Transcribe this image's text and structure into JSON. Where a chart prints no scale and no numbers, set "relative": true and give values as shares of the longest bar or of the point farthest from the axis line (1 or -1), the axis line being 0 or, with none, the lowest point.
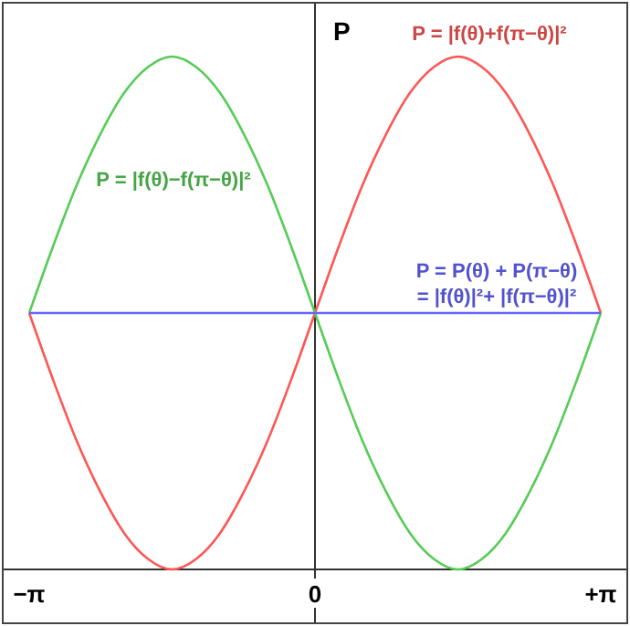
{
  "chart_data": {
    "type": "line",
    "relative": true,
    "ylabel": "P",
    "xlim": [
      -3.1416,
      3.1416
    ],
    "xticks": [
      {
        "value": -3.1416,
        "label": "−π"
      },
      {
        "value": 0,
        "label": "0"
      },
      {
        "value": 3.1416,
        "label": "+π"
      }
    ],
    "marker": "none",
    "line_style": "solid",
    "x": [
      -3.1416,
      -2.8798,
      -2.618,
      -2.3562,
      -2.0944,
      -1.8326,
      -1.5708,
      -1.309,
      -1.0472,
      -0.7854,
      -0.5236,
      -0.2618,
      0,
      0.2618,
      0.5236,
      0.7854,
      1.0472,
      1.309,
      1.5708,
      1.8326,
      2.0944,
      2.3562,
      2.618,
      2.8798,
      3.1416
    ],
    "series": [
      {
        "name": "P = |f(θ)+f(π−θ)|²",
        "color": "#ff5555",
        "values": [
          0.5,
          0.37,
          0.25,
          0.15,
          0.07,
          0.02,
          0,
          0.02,
          0.07,
          0.15,
          0.25,
          0.37,
          0.5,
          0.63,
          0.75,
          0.85,
          0.93,
          0.98,
          1,
          0.98,
          0.93,
          0.85,
          0.75,
          0.63,
          0.5
        ]
      },
      {
        "name": "P = |f(θ)−f(π−θ)|²",
        "color": "#55cc55",
        "values": [
          0.5,
          0.63,
          0.75,
          0.85,
          0.93,
          0.98,
          1,
          0.98,
          0.93,
          0.85,
          0.75,
          0.63,
          0.5,
          0.37,
          0.25,
          0.15,
          0.07,
          0.02,
          0,
          0.02,
          0.07,
          0.15,
          0.25,
          0.37,
          0.5
        ]
      },
      {
        "name": "P = P(θ) + P(π−θ)\n= |f(θ)|²+ |f(π−θ)|²",
        "color": "#6666ff",
        "x": [
          -3.1416,
          3.1416
        ],
        "values": [
          0.5,
          0.5
        ]
      }
    ]
  }
}
